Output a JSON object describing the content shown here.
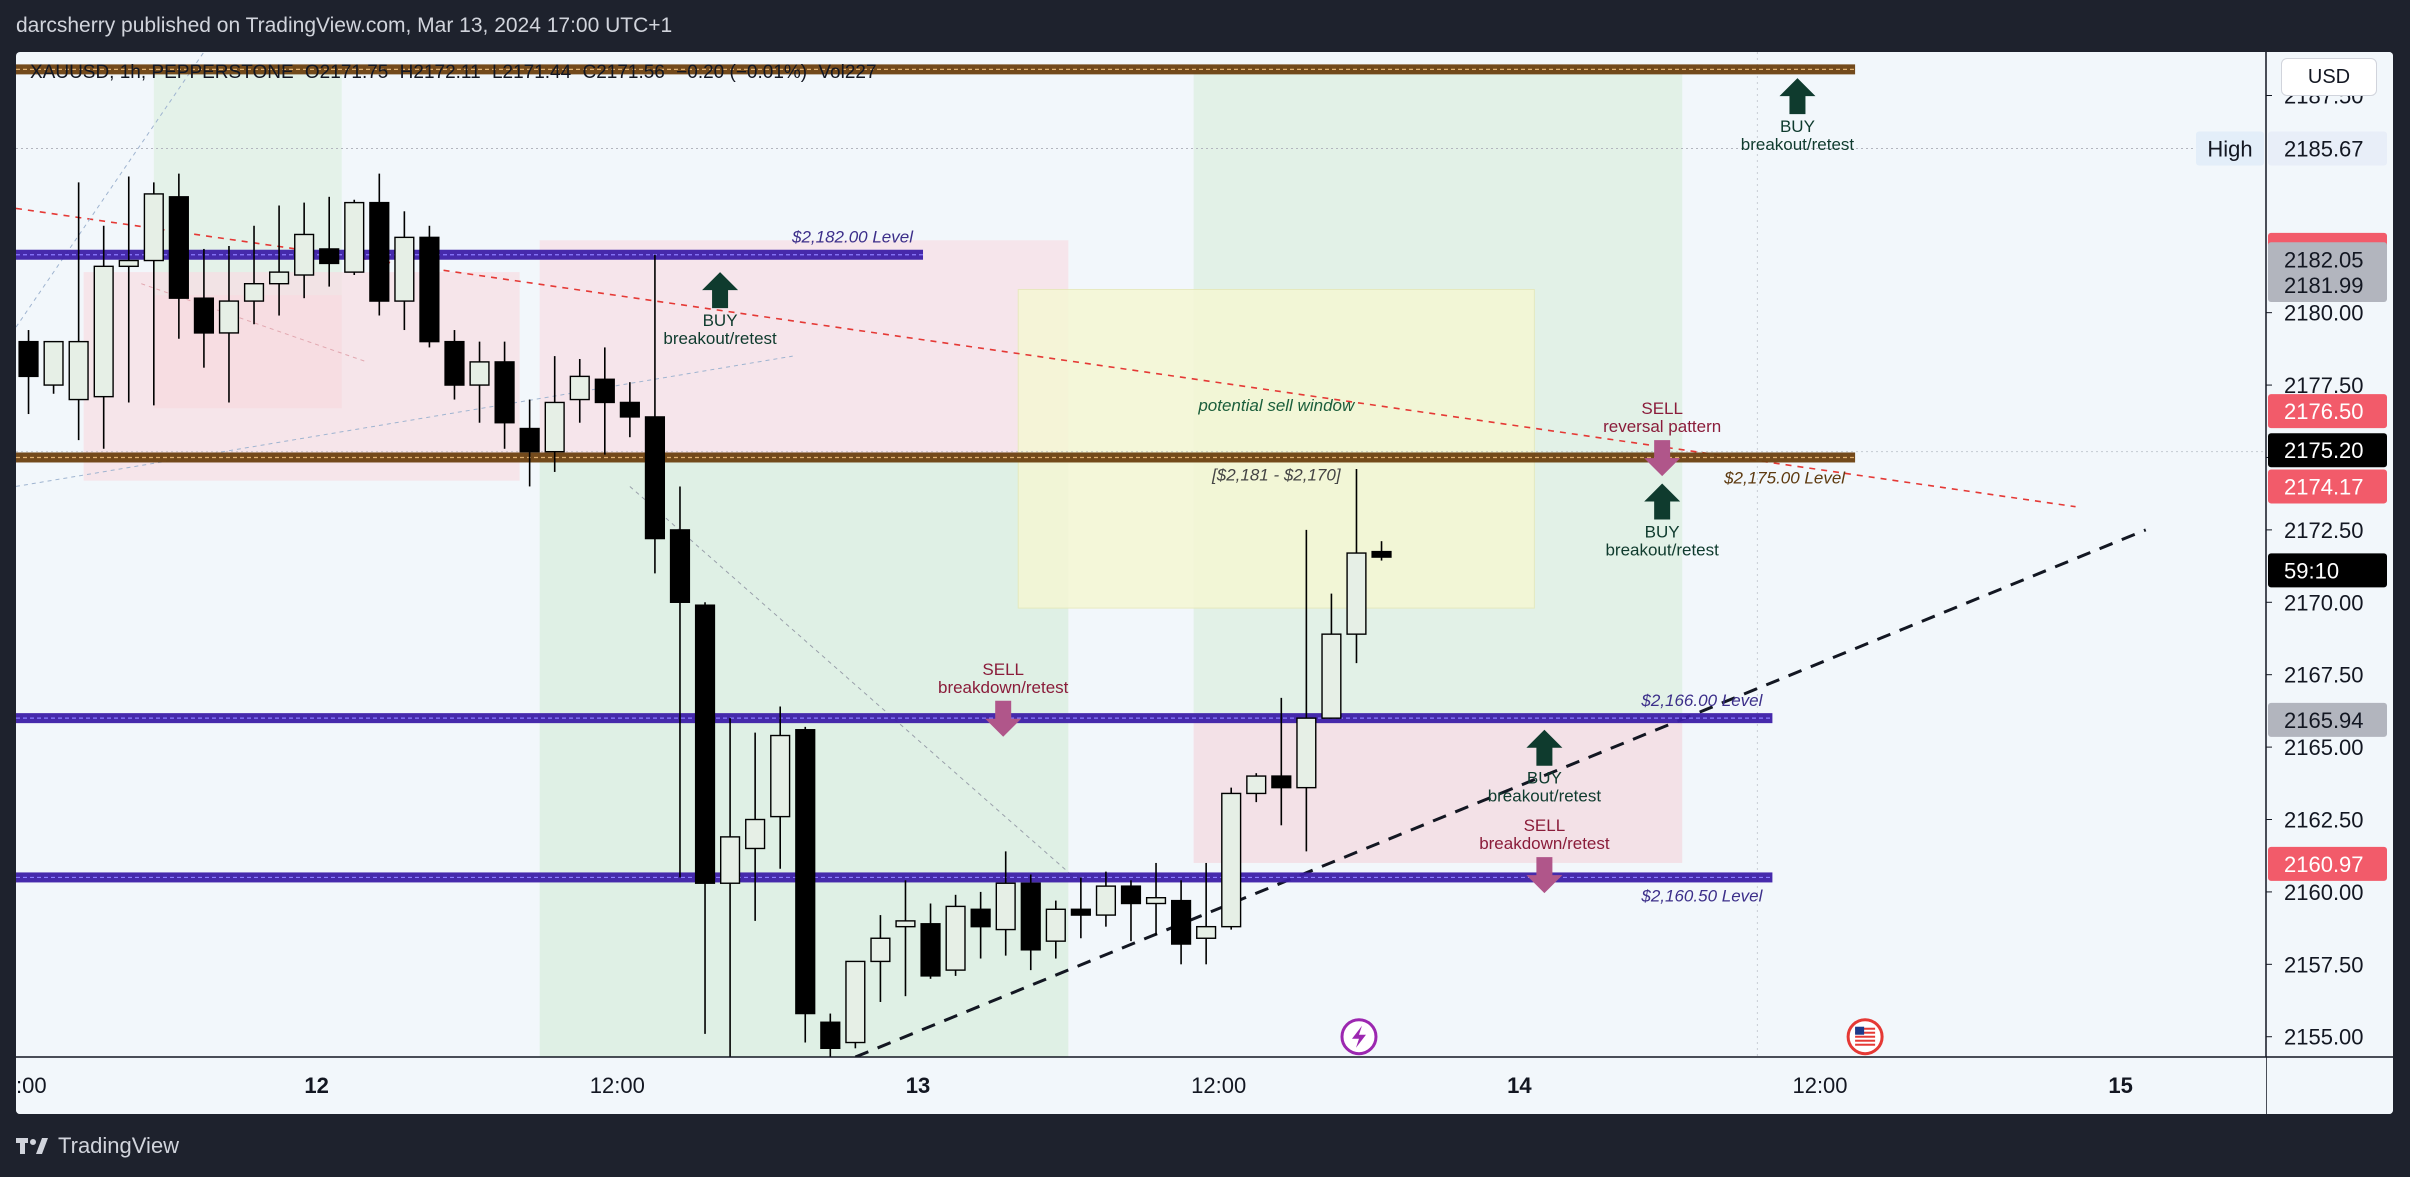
{
  "header": {
    "published_text": "darcsherry published on TradingView.com, Mar 13, 2024 17:00 UTC+1"
  },
  "footer": {
    "brand": "TradingView"
  },
  "symbol": {
    "name": "XAUUSD, 1h, PEPPERSTONE",
    "open": "O2171.75",
    "high": "H2172.11",
    "low": "L2171.44",
    "close": "C2171.56",
    "change": "−0.20 (−0.01%)",
    "volume": "Vol227"
  },
  "currency_button": "USD",
  "colors": {
    "bull": "#e6efe6",
    "bear": "#000000",
    "level_blue": "#3c1fa8",
    "level_brown": "#6b4010",
    "buy_arrow": "#0f3b2e",
    "sell_arrow": "#b0568a",
    "red_tag": "#f25b6a",
    "gray_tag": "#b2b5be"
  },
  "chart_data": {
    "type": "candlestick",
    "x_ticks": [
      {
        "label": ":00",
        "x": 0
      },
      {
        "label": "12",
        "x": 12,
        "bold": true
      },
      {
        "label": "12:00",
        "x": 24
      },
      {
        "label": "13",
        "x": 36,
        "bold": true
      },
      {
        "label": "12:00",
        "x": 48
      },
      {
        "label": "14",
        "x": 60,
        "bold": true
      },
      {
        "label": "12:00",
        "x": 72
      },
      {
        "label": "15",
        "x": 84,
        "bold": true
      }
    ],
    "y_ticks": [
      2155.0,
      2157.5,
      2160.0,
      2162.5,
      2165.0,
      2167.5,
      2170.0,
      2172.5,
      2175.0,
      2177.5,
      2180.0,
      2187.5
    ],
    "ylim": [
      2154.3,
      2189.0
    ],
    "xlim": [
      0,
      89.8
    ],
    "candles": [
      {
        "t": 0,
        "o": 2179.0,
        "h": 2179.4,
        "c": 2177.8,
        "l": 2176.5
      },
      {
        "t": 1,
        "o": 2177.5,
        "h": 2179.0,
        "c": 2179.0,
        "l": 2177.2
      },
      {
        "t": 2,
        "o": 2177.0,
        "h": 2184.5,
        "c": 2179.0,
        "l": 2175.6
      },
      {
        "t": 3,
        "o": 2177.1,
        "h": 2183.0,
        "c": 2181.6,
        "l": 2175.3
      },
      {
        "t": 4,
        "o": 2181.6,
        "h": 2184.7,
        "c": 2181.8,
        "l": 2176.9
      },
      {
        "t": 5,
        "o": 2181.8,
        "h": 2184.5,
        "c": 2184.1,
        "l": 2176.8
      },
      {
        "t": 6,
        "o": 2184.0,
        "h": 2184.8,
        "c": 2180.5,
        "l": 2179.1
      },
      {
        "t": 7,
        "o": 2180.5,
        "h": 2182.2,
        "c": 2179.3,
        "l": 2178.1
      },
      {
        "t": 8,
        "o": 2179.3,
        "h": 2182.3,
        "c": 2180.4,
        "l": 2176.9
      },
      {
        "t": 9,
        "o": 2180.4,
        "h": 2183.0,
        "c": 2181.0,
        "l": 2179.6
      },
      {
        "t": 10,
        "o": 2181.0,
        "h": 2183.7,
        "c": 2181.4,
        "l": 2179.9
      },
      {
        "t": 11,
        "o": 2181.3,
        "h": 2183.8,
        "c": 2182.7,
        "l": 2180.5
      },
      {
        "t": 12,
        "o": 2182.2,
        "h": 2184.0,
        "c": 2181.7,
        "l": 2180.9
      },
      {
        "t": 13,
        "o": 2181.4,
        "h": 2183.9,
        "c": 2183.8,
        "l": 2181.3
      },
      {
        "t": 14,
        "o": 2183.8,
        "h": 2184.8,
        "c": 2180.4,
        "l": 2179.9
      },
      {
        "t": 15,
        "o": 2180.4,
        "h": 2183.5,
        "c": 2182.6,
        "l": 2179.4
      },
      {
        "t": 16,
        "o": 2182.6,
        "h": 2183.0,
        "c": 2179.0,
        "l": 2178.8
      },
      {
        "t": 17,
        "o": 2179.0,
        "h": 2179.4,
        "c": 2177.5,
        "l": 2177.0
      },
      {
        "t": 18,
        "o": 2177.5,
        "h": 2179.0,
        "c": 2178.3,
        "l": 2176.2
      },
      {
        "t": 19,
        "o": 2178.3,
        "h": 2179.0,
        "c": 2176.2,
        "l": 2175.3
      },
      {
        "t": 20,
        "o": 2176.0,
        "h": 2177.0,
        "c": 2175.2,
        "l": 2174.0
      },
      {
        "t": 21,
        "o": 2175.2,
        "h": 2178.5,
        "c": 2176.9,
        "l": 2174.5
      },
      {
        "t": 22,
        "o": 2177.0,
        "h": 2178.4,
        "c": 2177.8,
        "l": 2176.2
      },
      {
        "t": 23,
        "o": 2177.7,
        "h": 2178.8,
        "c": 2176.9,
        "l": 2175.1
      },
      {
        "t": 24,
        "o": 2176.9,
        "h": 2177.6,
        "c": 2176.4,
        "l": 2175.7
      },
      {
        "t": 25,
        "o": 2176.4,
        "h": 2182.0,
        "c": 2172.2,
        "l": 2171.0
      },
      {
        "t": 26,
        "o": 2172.5,
        "h": 2174.0,
        "c": 2170.0,
        "l": 2160.5
      },
      {
        "t": 27,
        "o": 2169.9,
        "h": 2170.0,
        "c": 2160.3,
        "l": 2155.1
      },
      {
        "t": 28,
        "o": 2160.3,
        "h": 2166.0,
        "c": 2161.9,
        "l": 2154.3
      },
      {
        "t": 29,
        "o": 2161.5,
        "h": 2165.5,
        "c": 2162.5,
        "l": 2159.0
      },
      {
        "t": 30,
        "o": 2162.6,
        "h": 2166.4,
        "c": 2165.4,
        "l": 2160.8
      },
      {
        "t": 31,
        "o": 2165.6,
        "h": 2165.7,
        "c": 2155.8,
        "l": 2154.8
      },
      {
        "t": 32,
        "o": 2155.5,
        "h": 2155.8,
        "c": 2154.6,
        "l": 2154.3
      },
      {
        "t": 33,
        "o": 2154.8,
        "h": 2157.6,
        "c": 2157.6,
        "l": 2154.6
      },
      {
        "t": 34,
        "o": 2157.6,
        "h": 2159.2,
        "c": 2158.4,
        "l": 2156.2
      },
      {
        "t": 35,
        "o": 2158.8,
        "h": 2160.4,
        "c": 2159.0,
        "l": 2156.4
      },
      {
        "t": 36,
        "o": 2158.9,
        "h": 2159.6,
        "c": 2157.1,
        "l": 2157.0
      },
      {
        "t": 37,
        "o": 2157.3,
        "h": 2159.9,
        "c": 2159.5,
        "l": 2157.1
      },
      {
        "t": 38,
        "o": 2159.4,
        "h": 2160.0,
        "c": 2158.8,
        "l": 2157.7
      },
      {
        "t": 39,
        "o": 2158.7,
        "h": 2161.4,
        "c": 2160.3,
        "l": 2157.8
      },
      {
        "t": 40,
        "o": 2160.3,
        "h": 2160.6,
        "c": 2158.0,
        "l": 2157.3
      },
      {
        "t": 41,
        "o": 2158.3,
        "h": 2159.7,
        "c": 2159.4,
        "l": 2157.7
      },
      {
        "t": 42,
        "o": 2159.4,
        "h": 2160.5,
        "c": 2159.2,
        "l": 2158.4
      },
      {
        "t": 43,
        "o": 2159.2,
        "h": 2160.7,
        "c": 2160.2,
        "l": 2158.8
      },
      {
        "t": 44,
        "o": 2160.2,
        "h": 2160.4,
        "c": 2159.6,
        "l": 2158.3
      },
      {
        "t": 45,
        "o": 2159.6,
        "h": 2161.0,
        "c": 2159.8,
        "l": 2158.5
      },
      {
        "t": 46,
        "o": 2159.7,
        "h": 2160.4,
        "c": 2158.2,
        "l": 2157.5
      },
      {
        "t": 47,
        "o": 2158.4,
        "h": 2161.0,
        "c": 2158.8,
        "l": 2157.5
      },
      {
        "t": 48,
        "o": 2158.8,
        "h": 2163.6,
        "c": 2163.4,
        "l": 2158.7
      },
      {
        "t": 49,
        "o": 2163.4,
        "h": 2164.1,
        "c": 2164.0,
        "l": 2163.1
      },
      {
        "t": 50,
        "o": 2164.0,
        "h": 2166.7,
        "c": 2163.6,
        "l": 2162.3
      },
      {
        "t": 51,
        "o": 2163.6,
        "h": 2172.5,
        "c": 2166.0,
        "l": 2161.4
      },
      {
        "t": 52,
        "o": 2166.0,
        "h": 2170.3,
        "c": 2168.9,
        "l": 2166.0
      },
      {
        "t": 53,
        "o": 2168.9,
        "h": 2174.6,
        "c": 2171.7,
        "l": 2167.9
      },
      {
        "t": 54,
        "o": 2171.75,
        "h": 2172.11,
        "c": 2171.56,
        "l": 2171.44
      }
    ],
    "levels": [
      {
        "price": 2182.0,
        "label": "$2,182.00 Level",
        "t_end": 36.2
      },
      {
        "price": 2175.0,
        "label": "$2,175.00 Level",
        "t_end": 73.4,
        "brown": true
      },
      {
        "price": 2166.0,
        "label": "$2,166.00 Level",
        "t_end": 70.1
      },
      {
        "price": 2160.5,
        "label": "$2,160.50 Level",
        "t_end": 70.1
      },
      {
        "price": 2188.4,
        "label": "",
        "t_end": 73.4,
        "brown": true
      }
    ],
    "annotations": [
      {
        "type": "buy",
        "t": 28.1,
        "price": 2181.4,
        "top_text": "BUY",
        "bottom_text": "breakout/retest"
      },
      {
        "type": "sell",
        "t": 39.4,
        "price": 2166.6,
        "top_text": "SELL",
        "bottom_text": "breakdown/retest"
      },
      {
        "type": "buy",
        "t": 71.1,
        "price": 2188.1,
        "top_text": "BUY",
        "bottom_text": "breakout/retest"
      },
      {
        "type": "sell",
        "t": 65.7,
        "price": 2175.6,
        "top_text": "SELL",
        "bottom_text": "reversal pattern"
      },
      {
        "type": "buy",
        "t": 65.7,
        "price": 2174.1,
        "top_text": "BUY",
        "bottom_text": "breakout/retest"
      },
      {
        "type": "buy",
        "t": 61.0,
        "price": 2165.6,
        "top_text": "BUY",
        "bottom_text": "breakout/retest"
      },
      {
        "type": "sell",
        "t": 61.0,
        "price": 2161.2,
        "top_text": "SELL",
        "bottom_text": "breakdown/retest"
      }
    ],
    "sell_window": {
      "label": "potential sell window",
      "range": "[$2,181 - $2,170]"
    },
    "price_tags": [
      {
        "price": 2185.67,
        "label": "2185.67",
        "style": "plain",
        "title": "High"
      },
      {
        "price": 2182.17,
        "label": "2182.17",
        "style": "red"
      },
      {
        "price": 2182.05,
        "label": "2182.05",
        "style": "gray"
      },
      {
        "price": 2181.99,
        "label": "2181.99",
        "style": "gray"
      },
      {
        "price": 2176.5,
        "label": "2176.50",
        "style": "red"
      },
      {
        "price": 2175.2,
        "label": "2175.20",
        "style": "black"
      },
      {
        "price": 2174.17,
        "label": "2174.17",
        "style": "red"
      },
      {
        "price": 2171.56,
        "label": "59:10",
        "style": "black"
      },
      {
        "price": 2165.94,
        "label": "2165.94",
        "style": "gray"
      },
      {
        "price": 2160.97,
        "label": "2160.97",
        "style": "red"
      }
    ]
  }
}
